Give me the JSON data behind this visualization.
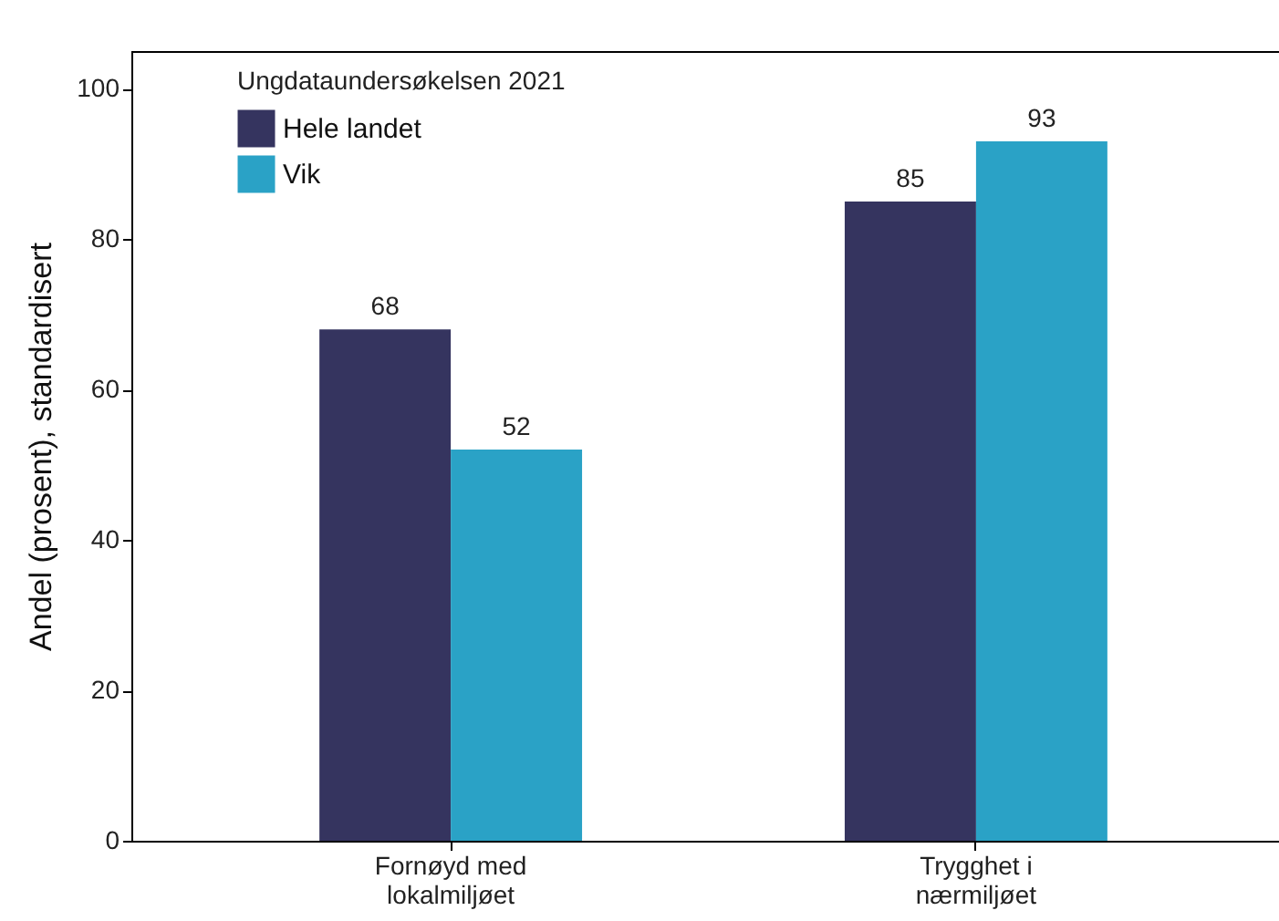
{
  "chart_data": {
    "type": "bar",
    "ylabel": "Andel (prosent), standardisert",
    "legend_title": "Ungdataundersøkelsen 2021",
    "categories": [
      "Fornøyd med lokalmiljøet",
      "Trygghet i nærmiljøet"
    ],
    "series": [
      {
        "name": "Hele landet",
        "color": "#35345f",
        "values": [
          68,
          85
        ]
      },
      {
        "name": "Vik",
        "color": "#2aa2c6",
        "values": [
          52,
          93
        ]
      }
    ],
    "ylim": [
      0,
      105
    ],
    "yticks": [
      0,
      20,
      40,
      60,
      80,
      100
    ],
    "grid": false,
    "legend": "top left",
    "data_labels": true
  }
}
